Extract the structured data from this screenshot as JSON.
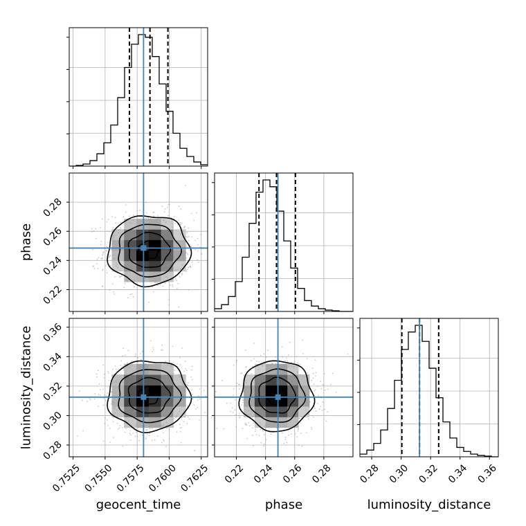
{
  "chart_data": {
    "type": "corner",
    "parameters": [
      "geocent_time",
      "phase",
      "luminosity_distance"
    ],
    "axis_labels": {
      "geocent_time": "geocent_time",
      "phase": "phase",
      "luminosity_distance": "luminosity_distance"
    },
    "ranges": {
      "geocent_time": [
        0.7522,
        0.763
      ],
      "phase": [
        0.205,
        0.3
      ],
      "luminosity_distance": [
        0.272,
        0.366
      ]
    },
    "ticks": {
      "geocent_time": [
        "0.7525",
        "0.7550",
        "0.7575",
        "0.7600",
        "0.7625"
      ],
      "phase": [
        "0.22",
        "0.24",
        "0.26",
        "0.28"
      ],
      "luminosity_distance": [
        "0.28",
        "0.30",
        "0.32",
        "0.34",
        "0.36"
      ]
    },
    "truths": {
      "geocent_time": 0.758,
      "phase": 0.2485,
      "luminosity_distance": 0.3125
    },
    "quantiles": {
      "geocent_time": [
        0.7569,
        0.7585,
        0.7599
      ],
      "phase": [
        0.2355,
        0.2475,
        0.2605
      ],
      "luminosity_distance": [
        0.3005,
        0.3125,
        0.3255
      ]
    },
    "histograms": {
      "geocent_time": {
        "edges_start": 0.7522,
        "bin_width": 0.00054,
        "counts": [
          0,
          0.005,
          0.015,
          0.04,
          0.09,
          0.17,
          0.3,
          0.5,
          0.72,
          0.89,
          0.96,
          0.94,
          0.8,
          0.6,
          0.4,
          0.24,
          0.13,
          0.07,
          0.03,
          0.01
        ]
      },
      "phase": {
        "edges_start": 0.205,
        "bin_width": 0.00475,
        "counts": [
          0.02,
          0.05,
          0.11,
          0.22,
          0.4,
          0.65,
          0.88,
          0.97,
          0.92,
          0.74,
          0.52,
          0.32,
          0.17,
          0.08,
          0.04,
          0.02,
          0.01,
          0.005,
          0,
          0
        ]
      },
      "luminosity_distance": {
        "edges_start": 0.272,
        "bin_width": 0.0047,
        "counts": [
          0.02,
          0.05,
          0.1,
          0.2,
          0.36,
          0.57,
          0.8,
          0.93,
          0.98,
          0.86,
          0.66,
          0.44,
          0.26,
          0.14,
          0.07,
          0.04,
          0.02,
          0.01,
          0.005,
          0
        ]
      }
    },
    "contours": {
      "geocent_time__phase": {
        "center": [
          0.7584,
          0.247
        ],
        "sigma": [
          0.0016,
          0.012
        ],
        "levels": [
          0.5,
          1.0,
          1.5,
          2.0
        ]
      },
      "geocent_time__luminosity_distance": {
        "center": [
          0.7584,
          0.3135
        ],
        "sigma": [
          0.0016,
          0.012
        ],
        "levels": [
          0.5,
          1.0,
          1.5,
          2.0
        ]
      },
      "phase__luminosity_distance": {
        "center": [
          0.2475,
          0.3135
        ],
        "sigma": [
          0.0125,
          0.012
        ],
        "levels": [
          0.5,
          1.0,
          1.5,
          2.0
        ]
      }
    },
    "grid": true,
    "colors": {
      "truth": "#4682b4",
      "hist": "#000000",
      "points": "#9a9a9a",
      "grid": "#b0b0b0"
    }
  }
}
